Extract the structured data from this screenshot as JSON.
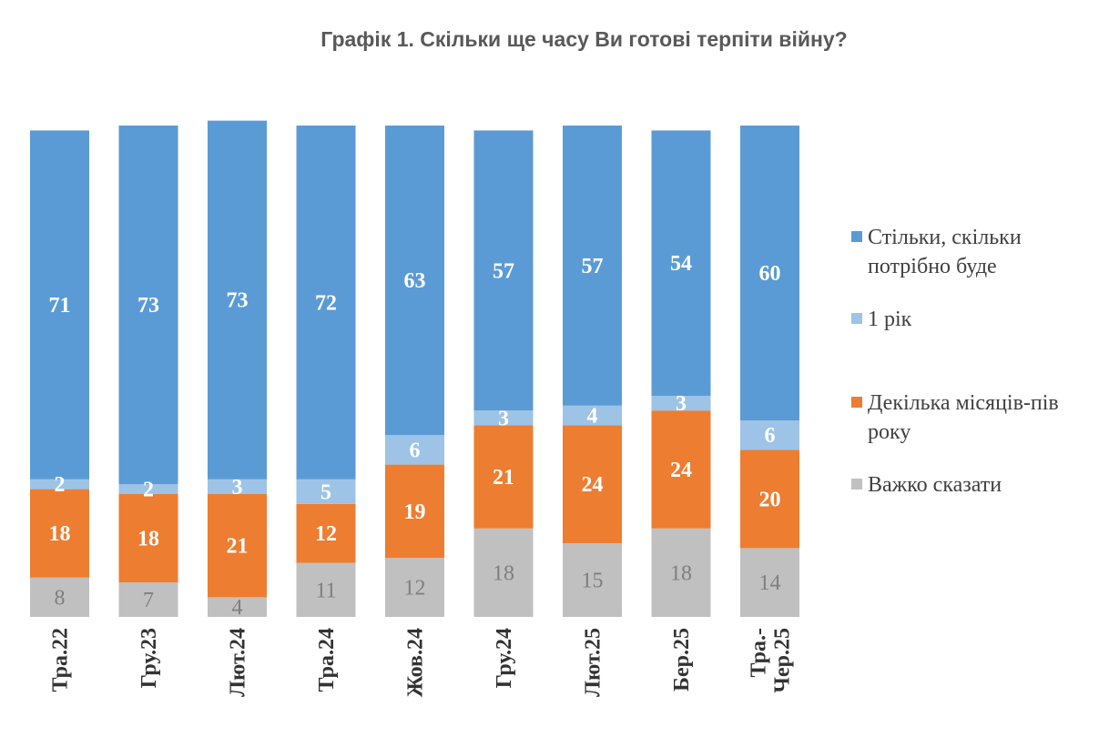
{
  "chart_data": {
    "type": "bar",
    "stacked": true,
    "title": "Графік 1. Скільки ще часу Ви готові терпіти війну?",
    "categories": [
      "Тра.22",
      "Гру.23",
      "Лют.24",
      "Тра.24",
      "Жов.24",
      "Гру.24",
      "Лют.25",
      "Бер.25",
      "Тра.-Чер.25"
    ],
    "series": [
      {
        "name": "Важко сказати",
        "color": "#c0c0c0",
        "label_style": "light",
        "values": [
          8,
          7,
          4,
          11,
          12,
          18,
          15,
          18,
          14
        ]
      },
      {
        "name": "Декілька місяців-пів року",
        "color": "#ed7d31",
        "label_style": "bold",
        "values": [
          18,
          18,
          21,
          12,
          19,
          21,
          24,
          24,
          20
        ]
      },
      {
        "name": "1 рік",
        "color": "#9dc3e6",
        "label_style": "bold",
        "values": [
          2,
          2,
          3,
          5,
          6,
          3,
          4,
          3,
          6
        ]
      },
      {
        "name": "Стільки, скільки потрібно буде",
        "color": "#5b9bd5",
        "label_style": "bold",
        "values": [
          71,
          73,
          73,
          72,
          63,
          57,
          57,
          54,
          60
        ]
      }
    ],
    "legend": {
      "position": "right",
      "entries": [
        {
          "series": 3,
          "lines": [
            "Стільки, скільки",
            "потрібно буде"
          ]
        },
        {
          "series": 2,
          "lines": [
            "1 рік"
          ]
        },
        {
          "series": 1,
          "lines": [
            "Декілька місяців-пів",
            "року"
          ]
        },
        {
          "series": 0,
          "lines": [
            "Важко сказати"
          ]
        }
      ]
    },
    "category_label_lines": [
      [
        "Тра.22"
      ],
      [
        "Гру.23"
      ],
      [
        "Лют.24"
      ],
      [
        "Тра.24"
      ],
      [
        "Жов.24"
      ],
      [
        "Гру.24"
      ],
      [
        "Лют.25"
      ],
      [
        "Бер.25"
      ],
      [
        "Тра.-",
        "Чер.25"
      ]
    ],
    "ylim": [
      0,
      100
    ],
    "grid": false,
    "data_labels": true
  }
}
